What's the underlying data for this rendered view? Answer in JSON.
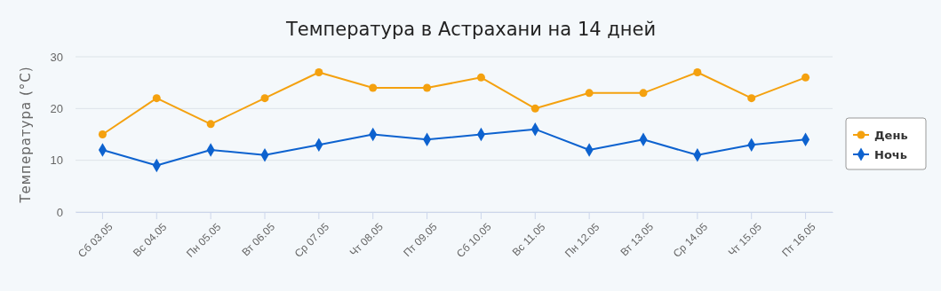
{
  "chart_data": {
    "type": "line",
    "title": "Температура в Астрахани на 14 дней",
    "ylabel": "Температура (°C)",
    "categories": [
      "Сб 03.05",
      "Вс 04.05",
      "Пн 05.05",
      "Вт 06.05",
      "Ср 07.05",
      "Чт 08.05",
      "Пт 09.05",
      "Сб 10.05",
      "Вс 11.05",
      "Пн 12.05",
      "Вт 13.05",
      "Ср 14.05",
      "Чт 15.05",
      "Пт 16.05"
    ],
    "series": [
      {
        "name": "День",
        "color": "#f4a10f",
        "marker": "circle",
        "values": [
          15,
          22,
          17,
          22,
          27,
          24,
          24,
          26,
          20,
          23,
          23,
          27,
          22,
          26
        ]
      },
      {
        "name": "Ночь",
        "color": "#0d62cf",
        "marker": "diamond",
        "values": [
          12,
          9,
          12,
          11,
          13,
          15,
          14,
          15,
          16,
          12,
          14,
          11,
          13,
          14
        ]
      }
    ],
    "ylim": [
      0,
      30
    ],
    "yticks": [
      0,
      10,
      20,
      30
    ],
    "grid": "y",
    "legend": "right",
    "line_style": "solid"
  }
}
